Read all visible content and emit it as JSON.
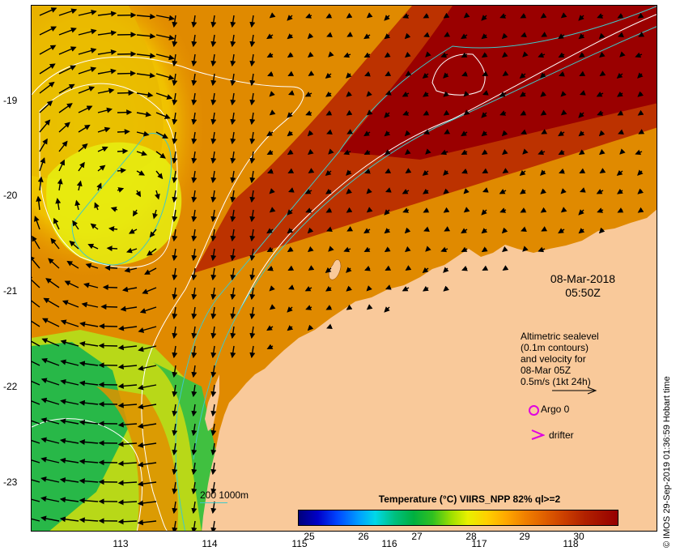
{
  "map": {
    "y_ticks": [
      "-19",
      "-20",
      "-21",
      "-22",
      "-23"
    ],
    "x_ticks": [
      "113",
      "114",
      "115",
      "116",
      "117",
      "118"
    ],
    "colors": {
      "land": "#f9c99a",
      "sst_warmest": "#9a0000",
      "sst_warm": "#c44a00",
      "sst_mid": "#e8a000",
      "sst_cool": "#e6f000",
      "sst_cold": "#18b848",
      "contour_sealevel": "#ffffff",
      "contour_depth": "#40c8c8",
      "argo": "#e000e0",
      "drifter": "#e000e0"
    }
  },
  "datetime": {
    "date": "08-Mar-2018",
    "time": "05:50Z"
  },
  "legend": {
    "line1": "Altimetric sealevel",
    "line2": "(0.1m contours)",
    "line3": "and velocity for",
    "line4": "08-Mar 05Z",
    "scale": "0.5m/s (1kt 24h)",
    "argo": "Argo 0",
    "drifter": "drifter"
  },
  "colorbar": {
    "title": "Temperature (°C) VIIRS_NPP 82% ql>=2",
    "labels": [
      "25",
      "26",
      "27",
      "28",
      "29",
      "30"
    ]
  },
  "depth_key": "200  1000m",
  "credit": "© IMOS 29-Sep-2019 01:36:59 Hobart time"
}
